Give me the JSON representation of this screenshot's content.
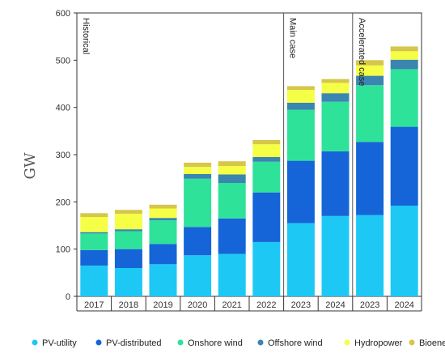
{
  "chart_data": {
    "type": "bar",
    "stacked": true,
    "ylabel": "GW",
    "ylim": [
      0,
      600
    ],
    "yticks": [
      0,
      100,
      200,
      300,
      400,
      500,
      600
    ],
    "categories": [
      "2017",
      "2018",
      "2019",
      "2020",
      "2021",
      "2022",
      "2023",
      "2024",
      "2023",
      "2024"
    ],
    "sections": [
      {
        "label": "Historical",
        "start": 0,
        "end": 5
      },
      {
        "label": "Main case",
        "start": 6,
        "end": 7
      },
      {
        "label": "Accelerated case",
        "start": 8,
        "end": 9
      }
    ],
    "series": [
      {
        "name": "PV-utility",
        "color": "#1ec8f5",
        "values": [
          65,
          60,
          68,
          87,
          90,
          115,
          155,
          170,
          172,
          192
        ]
      },
      {
        "name": "PV-distributed",
        "color": "#1565d8",
        "values": [
          33,
          40,
          43,
          60,
          75,
          105,
          132,
          137,
          155,
          167
        ]
      },
      {
        "name": "Onshore wind",
        "color": "#2ee29a",
        "values": [
          35,
          38,
          50,
          102,
          75,
          65,
          108,
          105,
          120,
          122
        ]
      },
      {
        "name": "Offshore wind",
        "color": "#3a86b0",
        "values": [
          3,
          4,
          5,
          10,
          18,
          10,
          15,
          18,
          20,
          20
        ]
      },
      {
        "name": "Hydropower",
        "color": "#f4ff45",
        "values": [
          32,
          33,
          20,
          15,
          18,
          27,
          27,
          22,
          22,
          18
        ]
      },
      {
        "name": "Bioenergy",
        "color": "#d6c64a",
        "values": [
          8,
          8,
          8,
          9,
          10,
          9,
          8,
          8,
          11,
          10
        ]
      }
    ],
    "legend_position": "bottom",
    "grid": false
  }
}
